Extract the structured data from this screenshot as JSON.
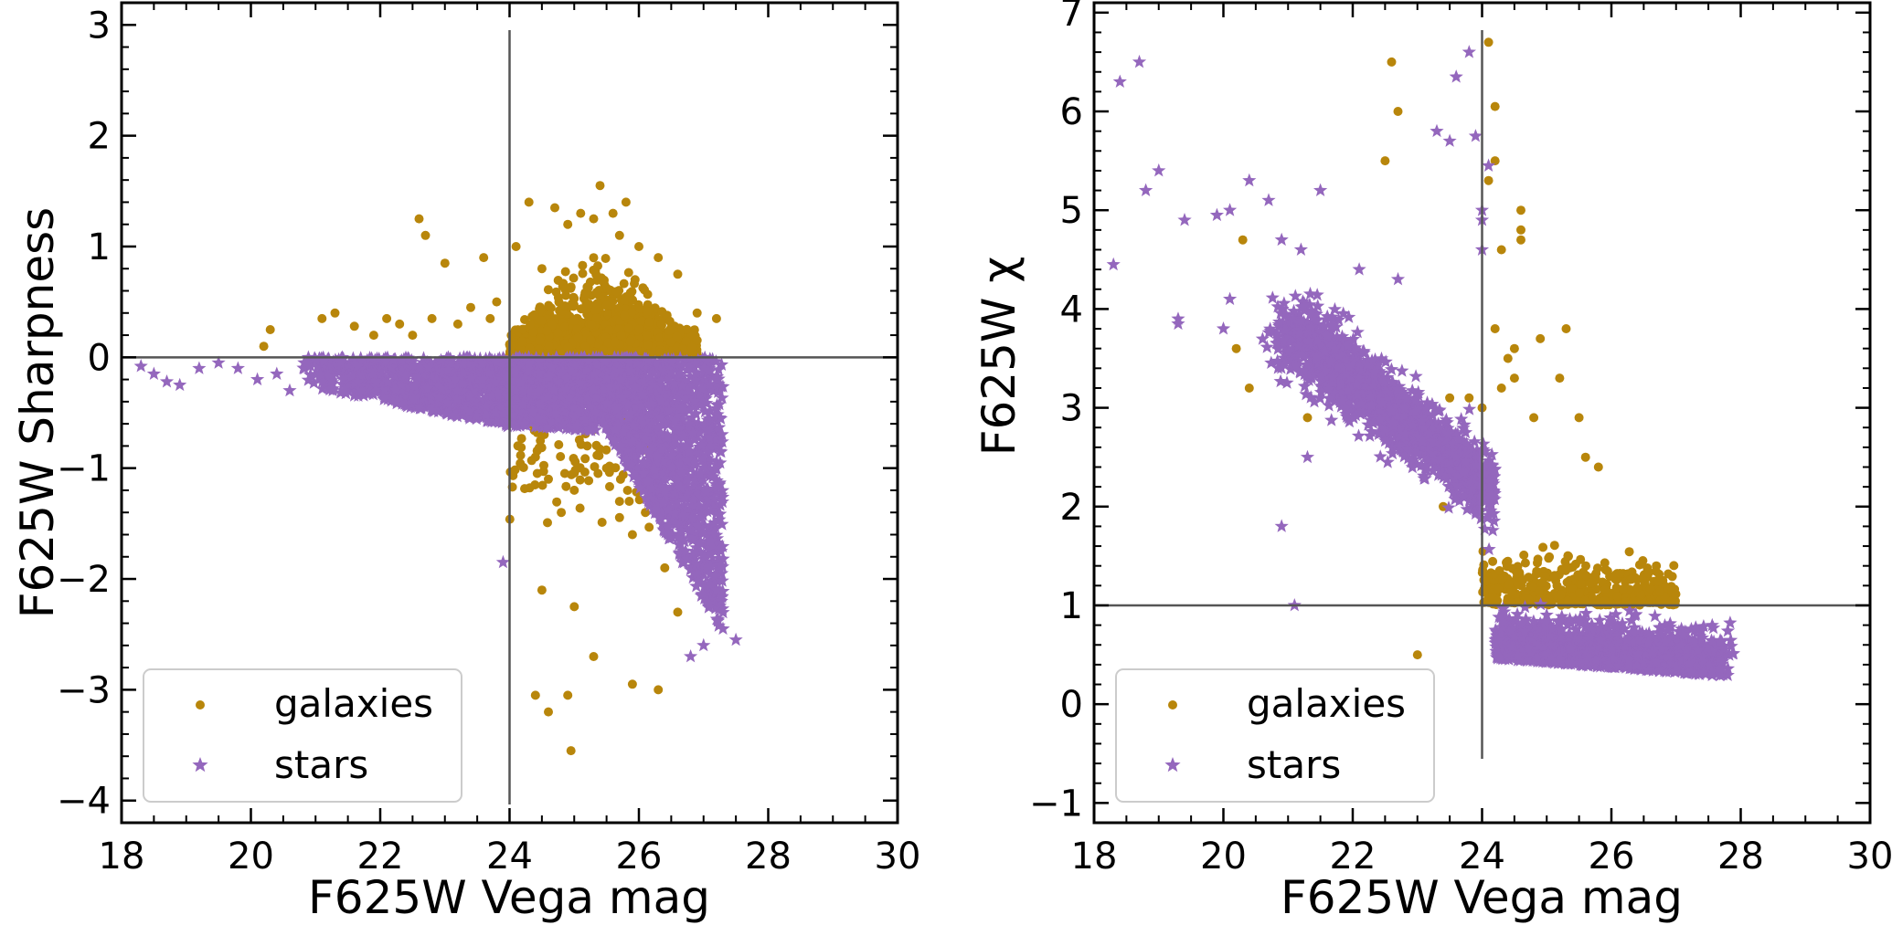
{
  "figure": {
    "description_free": true
  },
  "colors": {
    "galaxies": "#b8860b",
    "stars": "#9467bd",
    "refline": "#555555",
    "axis": "#000000"
  },
  "chart_data": [
    {
      "type": "scatter",
      "id": "left",
      "xlabel": "F625W Vega mag",
      "ylabel": "F625W Sharpness",
      "xlim": [
        18,
        30
      ],
      "ylim": [
        -4.2,
        3.2
      ],
      "xticks": [
        18,
        20,
        22,
        24,
        26,
        28,
        30
      ],
      "xtick_labels": [
        "18",
        "20",
        "22",
        "24",
        "26",
        "28",
        "30"
      ],
      "yticks": [
        -4,
        -3,
        -2,
        -1,
        0,
        1,
        2,
        3
      ],
      "ytick_labels": [
        "−4",
        "−3",
        "−2",
        "−1",
        "0",
        "1",
        "2",
        "3"
      ],
      "reference_lines": {
        "x": 24,
        "y": 0
      },
      "legend": {
        "location": "lower-left",
        "entries": [
          "galaxies",
          "stars"
        ]
      },
      "series": [
        {
          "name": "galaxies",
          "marker": "circle",
          "points": [
            [
              20.2,
              0.1
            ],
            [
              20.3,
              0.25
            ],
            [
              21.1,
              0.35
            ],
            [
              21.3,
              0.4
            ],
            [
              21.6,
              0.28
            ],
            [
              21.9,
              0.2
            ],
            [
              22.1,
              0.35
            ],
            [
              22.3,
              0.3
            ],
            [
              22.5,
              0.2
            ],
            [
              22.6,
              1.25
            ],
            [
              22.7,
              1.1
            ],
            [
              22.8,
              0.35
            ],
            [
              23.0,
              0.85
            ],
            [
              23.2,
              0.3
            ],
            [
              23.4,
              0.45
            ],
            [
              23.6,
              0.9
            ],
            [
              23.7,
              0.35
            ],
            [
              23.8,
              0.5
            ],
            [
              24.1,
              1.0
            ],
            [
              24.3,
              1.4
            ],
            [
              24.5,
              0.8
            ],
            [
              24.7,
              1.35
            ],
            [
              24.9,
              1.2
            ],
            [
              25.1,
              1.3
            ],
            [
              25.3,
              1.25
            ],
            [
              25.4,
              1.55
            ],
            [
              25.6,
              1.3
            ],
            [
              25.7,
              1.1
            ],
            [
              25.8,
              1.4
            ],
            [
              26.0,
              1.0
            ],
            [
              26.3,
              0.9
            ],
            [
              26.6,
              0.75
            ],
            [
              26.9,
              0.4
            ],
            [
              27.2,
              0.35
            ],
            [
              24.2,
              -0.5
            ],
            [
              24.4,
              -0.9
            ],
            [
              24.6,
              -1.1
            ],
            [
              24.8,
              -1.4
            ],
            [
              25.0,
              -1.2
            ],
            [
              25.2,
              -0.8
            ],
            [
              25.5,
              -1.0
            ],
            [
              25.7,
              -1.3
            ],
            [
              25.9,
              -1.6
            ],
            [
              26.1,
              -1.4
            ],
            [
              26.4,
              -1.9
            ],
            [
              26.6,
              -2.3
            ],
            [
              24.5,
              -2.1
            ],
            [
              25.0,
              -2.25
            ],
            [
              25.3,
              -2.7
            ],
            [
              24.4,
              -3.05
            ],
            [
              24.6,
              -3.2
            ],
            [
              24.9,
              -3.05
            ],
            [
              25.9,
              -2.95
            ],
            [
              26.3,
              -3.0
            ],
            [
              24.95,
              -3.55
            ]
          ],
          "dense_regions": [
            {
              "x_range": [
                24.0,
                26.9
              ],
              "y_center": 0.3,
              "y_spread": 0.45,
              "count": 1500
            },
            {
              "x_range": [
                24.0,
                26.3
              ],
              "y_center": -1.0,
              "y_spread": 0.4,
              "count": 90
            }
          ]
        },
        {
          "name": "stars",
          "marker": "star",
          "points": [
            [
              18.3,
              -0.08
            ],
            [
              18.5,
              -0.15
            ],
            [
              18.7,
              -0.22
            ],
            [
              18.9,
              -0.25
            ],
            [
              19.2,
              -0.1
            ],
            [
              19.5,
              -0.05
            ],
            [
              19.8,
              -0.1
            ],
            [
              20.1,
              -0.2
            ],
            [
              20.4,
              -0.15
            ],
            [
              20.6,
              -0.3
            ],
            [
              23.9,
              -1.85
            ],
            [
              27.0,
              -2.6
            ],
            [
              27.3,
              -2.45
            ],
            [
              27.5,
              -2.55
            ],
            [
              27.2,
              -2.1
            ],
            [
              26.8,
              -2.7
            ]
          ],
          "dense_regions": [
            {
              "shape": "band",
              "x_range": [
                20.8,
                27.3
              ],
              "y_top": 0.0,
              "y_bottom_start": -0.5,
              "y_bottom_end": -2.5,
              "count": 3500
            }
          ]
        }
      ]
    },
    {
      "type": "scatter",
      "id": "right",
      "xlabel": "F625W Vega mag",
      "ylabel": "F625W χ",
      "xlim": [
        18,
        30
      ],
      "ylim": [
        -1.2,
        7.1
      ],
      "xticks": [
        18,
        20,
        22,
        24,
        26,
        28,
        30
      ],
      "xtick_labels": [
        "18",
        "20",
        "22",
        "24",
        "26",
        "28",
        "30"
      ],
      "yticks": [
        -1,
        0,
        1,
        2,
        3,
        4,
        5,
        6,
        7
      ],
      "ytick_labels": [
        "−1",
        "0",
        "1",
        "2",
        "3",
        "4",
        "5",
        "6",
        "7"
      ],
      "reference_lines": {
        "x": 24,
        "y": 1
      },
      "legend": {
        "location": "lower-left",
        "entries": [
          "galaxies",
          "stars"
        ]
      },
      "series": [
        {
          "name": "galaxies",
          "marker": "circle",
          "points": [
            [
              20.3,
              4.7
            ],
            [
              20.2,
              3.6
            ],
            [
              20.4,
              3.2
            ],
            [
              21.3,
              2.9
            ],
            [
              22.6,
              6.5
            ],
            [
              22.7,
              6.0
            ],
            [
              22.5,
              5.5
            ],
            [
              24.1,
              6.7
            ],
            [
              24.2,
              6.05
            ],
            [
              24.2,
              5.5
            ],
            [
              24.1,
              5.3
            ],
            [
              24.3,
              4.6
            ],
            [
              24.6,
              5.0
            ],
            [
              24.6,
              4.8
            ],
            [
              24.6,
              4.7
            ],
            [
              24.2,
              3.8
            ],
            [
              24.4,
              3.5
            ],
            [
              24.5,
              3.3
            ],
            [
              24.3,
              3.2
            ],
            [
              24.5,
              3.6
            ],
            [
              24.9,
              3.7
            ],
            [
              25.3,
              3.8
            ],
            [
              25.2,
              3.3
            ],
            [
              24.8,
              2.9
            ],
            [
              25.5,
              2.9
            ],
            [
              25.6,
              2.5
            ],
            [
              25.8,
              2.4
            ],
            [
              23.8,
              3.1
            ],
            [
              23.5,
              3.1
            ],
            [
              23.7,
              2.5
            ],
            [
              23.4,
              2.0
            ],
            [
              23.0,
              0.5
            ],
            [
              24.0,
              3.0
            ]
          ],
          "dense_regions": [
            {
              "x_range": [
                24.0,
                27.0
              ],
              "y_center": 1.3,
              "y_spread": 0.35,
              "count": 450
            }
          ]
        },
        {
          "name": "stars",
          "marker": "star",
          "points": [
            [
              18.3,
              4.45
            ],
            [
              18.4,
              6.3
            ],
            [
              18.7,
              6.5
            ],
            [
              18.8,
              5.2
            ],
            [
              19.0,
              5.4
            ],
            [
              19.3,
              3.9
            ],
            [
              19.3,
              3.85
            ],
            [
              19.4,
              4.9
            ],
            [
              19.9,
              4.95
            ],
            [
              20.0,
              3.8
            ],
            [
              20.1,
              4.1
            ],
            [
              20.1,
              5.0
            ],
            [
              20.4,
              5.3
            ],
            [
              20.7,
              5.1
            ],
            [
              20.9,
              4.7
            ],
            [
              21.2,
              4.6
            ],
            [
              21.5,
              5.2
            ],
            [
              22.1,
              4.4
            ],
            [
              22.7,
              4.3
            ],
            [
              23.3,
              5.8
            ],
            [
              23.5,
              5.7
            ],
            [
              23.6,
              6.35
            ],
            [
              23.9,
              5.75
            ],
            [
              23.8,
              6.6
            ],
            [
              24.0,
              4.9
            ],
            [
              24.0,
              4.6
            ],
            [
              24.1,
              5.45
            ],
            [
              24.0,
              5.0
            ],
            [
              21.1,
              1.0
            ],
            [
              20.9,
              1.8
            ],
            [
              21.3,
              2.5
            ]
          ],
          "dense_regions": [
            {
              "shape": "diagonal-band",
              "from": [
                21.0,
                3.8
              ],
              "to": [
                27.6,
                0.4
              ],
              "count": 3500
            }
          ]
        }
      ]
    }
  ]
}
